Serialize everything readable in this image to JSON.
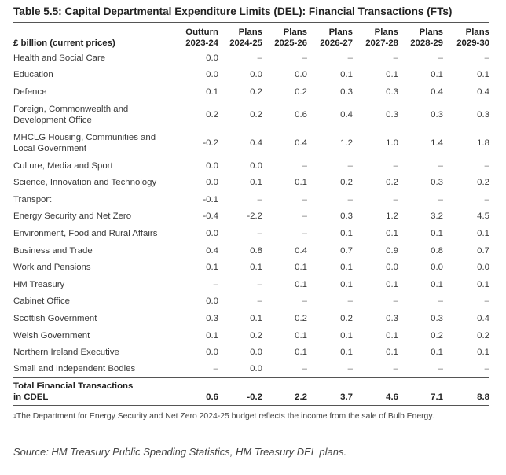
{
  "title": "Table 5.5: Capital Departmental Expenditure Limits (DEL): Financial Transactions (FTs)",
  "header": {
    "unit_label": "£ billion (current prices)",
    "columns": [
      {
        "type": "Outturn",
        "year": "2023-24"
      },
      {
        "type": "Plans",
        "year": "2024-25"
      },
      {
        "type": "Plans",
        "year": "2025-26"
      },
      {
        "type": "Plans",
        "year": "2026-27"
      },
      {
        "type": "Plans",
        "year": "2027-28"
      },
      {
        "type": "Plans",
        "year": "2028-29"
      },
      {
        "type": "Plans",
        "year": "2029-30"
      }
    ]
  },
  "rows": [
    {
      "label": [
        "Health and Social Care"
      ],
      "values": [
        "0.0",
        "–",
        "–",
        "–",
        "–",
        "–",
        "–"
      ]
    },
    {
      "label": [
        "Education"
      ],
      "values": [
        "0.0",
        "0.0",
        "0.0",
        "0.1",
        "0.1",
        "0.1",
        "0.1"
      ]
    },
    {
      "label": [
        "Defence"
      ],
      "values": [
        "0.1",
        "0.2",
        "0.2",
        "0.3",
        "0.3",
        "0.4",
        "0.4"
      ]
    },
    {
      "label": [
        "Foreign, Commonwealth and",
        "Development Office"
      ],
      "values": [
        "0.2",
        "0.2",
        "0.6",
        "0.4",
        "0.3",
        "0.3",
        "0.3"
      ]
    },
    {
      "label": [
        "MHCLG Housing, Communities and",
        "Local Government"
      ],
      "values": [
        "-0.2",
        "0.4",
        "0.4",
        "1.2",
        "1.0",
        "1.4",
        "1.8"
      ]
    },
    {
      "label": [
        "Culture, Media and Sport"
      ],
      "values": [
        "0.0",
        "0.0",
        "–",
        "–",
        "–",
        "–",
        "–"
      ]
    },
    {
      "label": [
        "Science, Innovation and Technology"
      ],
      "values": [
        "0.0",
        "0.1",
        "0.1",
        "0.2",
        "0.2",
        "0.3",
        "0.2"
      ]
    },
    {
      "label": [
        "Transport"
      ],
      "values": [
        "-0.1",
        "–",
        "–",
        "–",
        "–",
        "–",
        "–"
      ]
    },
    {
      "label": [
        "Energy Security and Net Zero"
      ],
      "values": [
        "-0.4",
        "-2.2",
        "–",
        "0.3",
        "1.2",
        "3.2",
        "4.5"
      ]
    },
    {
      "label": [
        "Environment, Food and Rural Affairs"
      ],
      "values": [
        "0.0",
        "–",
        "–",
        "0.1",
        "0.1",
        "0.1",
        "0.1"
      ]
    },
    {
      "label": [
        "Business and Trade"
      ],
      "values": [
        "0.4",
        "0.8",
        "0.4",
        "0.7",
        "0.9",
        "0.8",
        "0.7"
      ]
    },
    {
      "label": [
        "Work and Pensions"
      ],
      "values": [
        "0.1",
        "0.1",
        "0.1",
        "0.1",
        "0.0",
        "0.0",
        "0.0"
      ]
    },
    {
      "label": [
        "HM Treasury"
      ],
      "values": [
        "–",
        "–",
        "0.1",
        "0.1",
        "0.1",
        "0.1",
        "0.1"
      ]
    },
    {
      "label": [
        "Cabinet Office"
      ],
      "values": [
        "0.0",
        "–",
        "–",
        "–",
        "–",
        "–",
        "–"
      ]
    },
    {
      "label": [
        "Scottish Government"
      ],
      "values": [
        "0.3",
        "0.1",
        "0.2",
        "0.2",
        "0.3",
        "0.3",
        "0.4"
      ]
    },
    {
      "label": [
        "Welsh Government"
      ],
      "values": [
        "0.1",
        "0.2",
        "0.1",
        "0.1",
        "0.1",
        "0.2",
        "0.2"
      ]
    },
    {
      "label": [
        "Northern Ireland Executive"
      ],
      "values": [
        "0.0",
        "0.0",
        "0.1",
        "0.1",
        "0.1",
        "0.1",
        "0.1"
      ]
    },
    {
      "label": [
        "Small and Independent Bodies"
      ],
      "values": [
        "–",
        "0.0",
        "–",
        "–",
        "–",
        "–",
        "–"
      ]
    }
  ],
  "total": {
    "label": [
      "Total Financial Transactions",
      "in CDEL"
    ],
    "values": [
      "0.6",
      "-0.2",
      "2.2",
      "3.7",
      "4.6",
      "7.1",
      "8.8"
    ]
  },
  "footnote": {
    "marker": "1",
    "text": "The Department for Energy Security and Net Zero 2024-25 budget reflects the income from the sale of Bulb Energy."
  },
  "source": "Source: HM Treasury Public Spending Statistics, HM Treasury DEL plans."
}
